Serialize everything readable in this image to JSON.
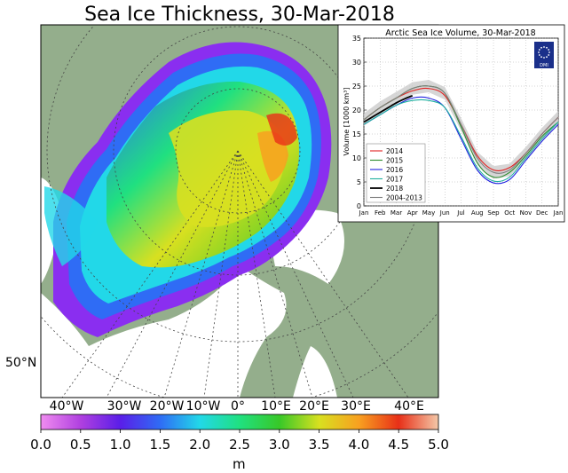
{
  "figure": {
    "title": "Sea Ice Thickness, 30-Mar-2018",
    "lat_label": "50°N",
    "lon_labels": [
      "40°W",
      "30°W",
      "20°W",
      "10°W",
      "0°",
      "10°E",
      "20°E",
      "30°E",
      "40°E"
    ]
  },
  "colorbar": {
    "unit": "m",
    "ticks": [
      "0.0",
      "0.5",
      "1.0",
      "1.5",
      "2.0",
      "2.5",
      "3.0",
      "3.5",
      "4.0",
      "4.5",
      "5.0"
    ],
    "range": [
      0,
      5
    ],
    "colors": [
      "#f08cf0",
      "#b040e0",
      "#5a1ee8",
      "#2f6cf5",
      "#22d8e8",
      "#20e080",
      "#38c828",
      "#d8e020",
      "#f8a020",
      "#e83018",
      "#f4c8a8"
    ]
  },
  "colors": {
    "land": "#94ae8c",
    "ocean": "#ffffff"
  },
  "chart_data": {
    "type": "line",
    "title": "Arctic Sea Ice Volume, 30-Mar-2018",
    "ylabel": "Volume  [1000 km³]",
    "ylim": [
      0,
      35
    ],
    "yticks": [
      0,
      5,
      10,
      15,
      20,
      25,
      30,
      35
    ],
    "x_labels": [
      "Jan",
      "Feb",
      "Mar",
      "Apr",
      "May",
      "Jun",
      "Jul",
      "Aug",
      "Sep",
      "Oct",
      "Nov",
      "Dec",
      "Jan"
    ],
    "x_positions": [
      0,
      1,
      2,
      3,
      4,
      5,
      6,
      7,
      8,
      9,
      10,
      11,
      12
    ],
    "logo": "DMI",
    "series": [
      {
        "name": "2014",
        "color": "#e02020",
        "x": [
          0,
          1,
          2,
          3,
          4,
          5,
          6,
          7,
          8,
          9,
          10,
          11,
          12
        ],
        "values": [
          18,
          20.5,
          22.5,
          24,
          24.5,
          23,
          17,
          10.5,
          7.5,
          8,
          11,
          15,
          18.5
        ]
      },
      {
        "name": "2015",
        "color": "#2e8b2e",
        "x": [
          0,
          1,
          2,
          3,
          4,
          5,
          6,
          7,
          8,
          9,
          10,
          11,
          12
        ],
        "values": [
          18,
          20.5,
          22.5,
          24.5,
          25,
          23.5,
          16.5,
          9,
          6,
          7,
          10.5,
          14.5,
          17.5
        ]
      },
      {
        "name": "2016",
        "color": "#2020e0",
        "x": [
          0,
          1,
          2,
          3,
          4,
          5,
          6,
          7,
          8,
          9,
          10,
          11,
          12
        ],
        "values": [
          17,
          19,
          21,
          22.5,
          22.5,
          20.5,
          14,
          7.5,
          4.8,
          5.5,
          9.5,
          13.5,
          17
        ]
      },
      {
        "name": "2017",
        "color": "#20b0a0",
        "x": [
          0,
          1,
          2,
          3,
          4,
          5,
          6,
          7,
          8,
          9,
          10,
          11,
          12
        ],
        "values": [
          17,
          19,
          21,
          22,
          22,
          20.5,
          14.5,
          8,
          5.2,
          6,
          10,
          14,
          17.5
        ]
      },
      {
        "name": "2018",
        "color": "#000000",
        "x": [
          0,
          0.5,
          1,
          1.5,
          2,
          2.5,
          3
        ],
        "values": [
          17.5,
          18.5,
          19.5,
          20.5,
          21.5,
          22.3,
          23
        ]
      },
      {
        "name": "2004-2013",
        "color": "#808080",
        "x": [
          0,
          1,
          2,
          3,
          4,
          5,
          6,
          7,
          8,
          9,
          10,
          11,
          12
        ],
        "values": [
          18,
          20.5,
          22.5,
          24.5,
          25,
          23.5,
          17,
          10,
          7,
          7.5,
          11,
          15,
          18.5
        ]
      }
    ]
  }
}
